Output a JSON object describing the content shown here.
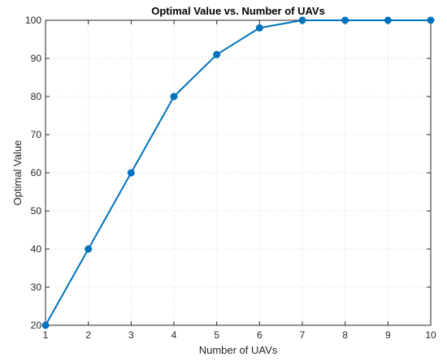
{
  "chart_data": {
    "type": "line",
    "title": "Optimal Value vs. Number of UAVs",
    "xlabel": "Number of UAVs",
    "ylabel": "Optimal Value",
    "x": [
      1,
      2,
      3,
      4,
      5,
      6,
      7,
      8,
      9,
      10
    ],
    "series": [
      {
        "values": [
          20,
          40,
          60,
          80,
          91,
          98,
          100,
          100,
          100,
          100
        ],
        "color": "#0072BD",
        "marker": "circle"
      }
    ],
    "xlim": [
      1,
      10
    ],
    "ylim": [
      20,
      100
    ],
    "xticks": [
      "1",
      "2",
      "3",
      "4",
      "5",
      "6",
      "7",
      "8",
      "9",
      "10"
    ],
    "yticks": [
      "20",
      "30",
      "40",
      "50",
      "60",
      "70",
      "80",
      "90",
      "100"
    ],
    "grid": true,
    "legend": "none"
  }
}
